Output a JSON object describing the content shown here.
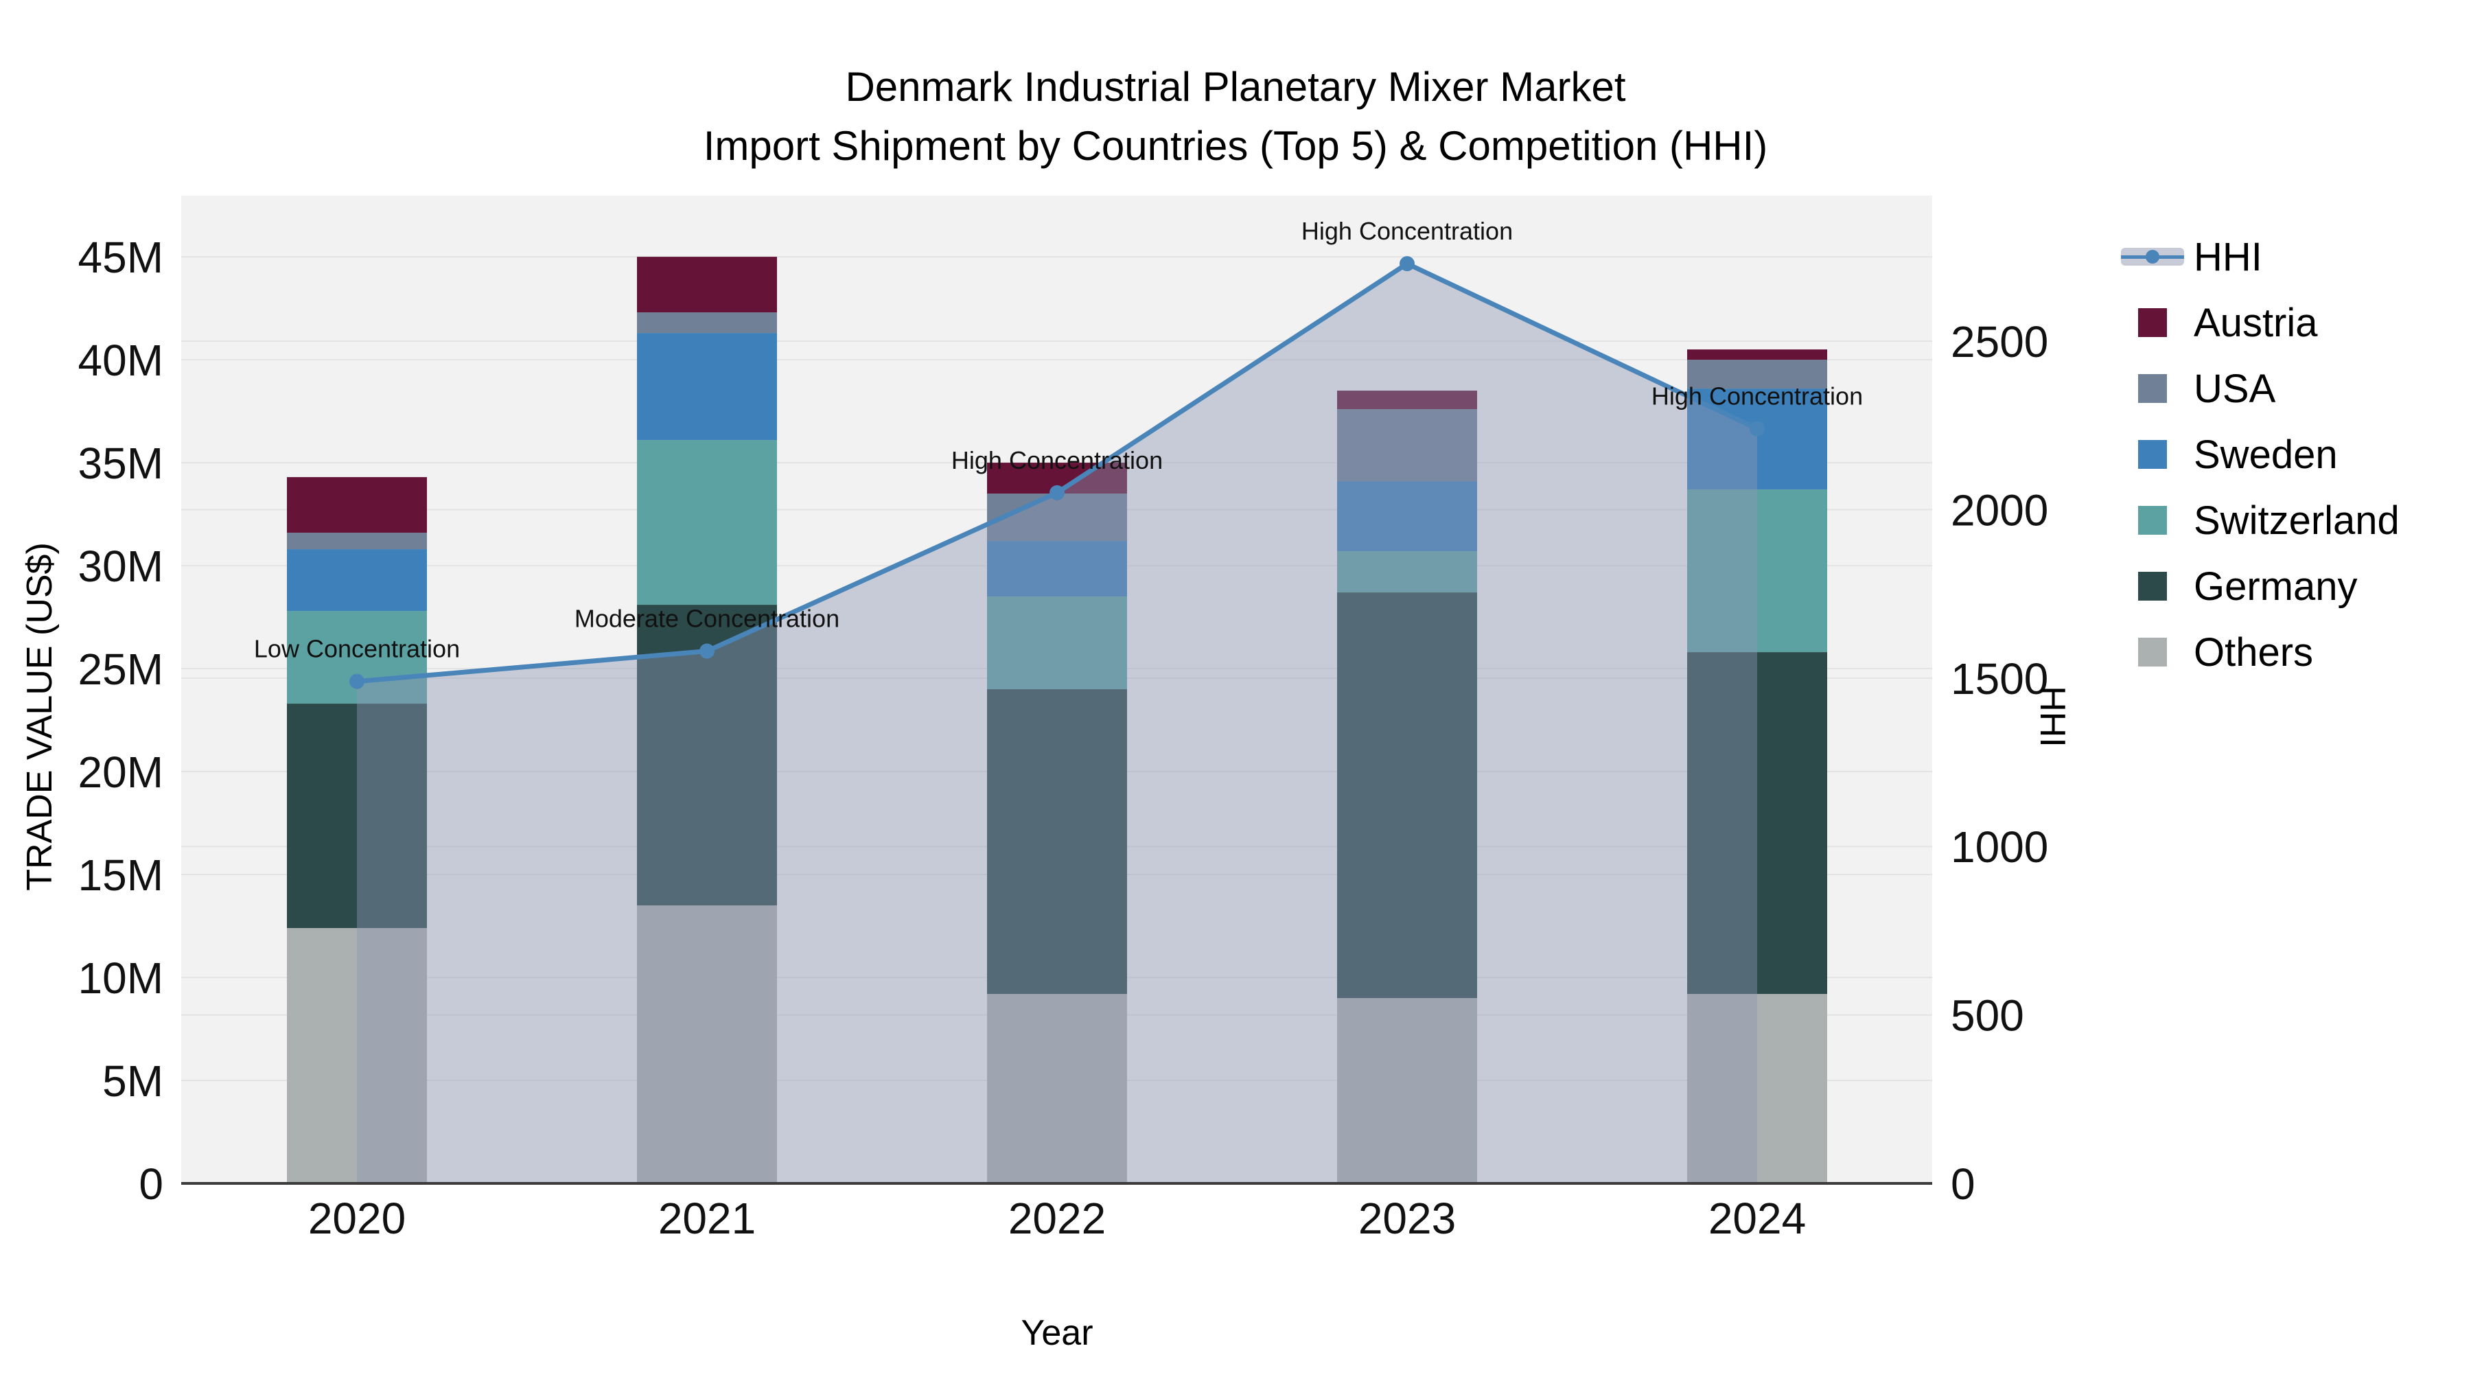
{
  "page": {
    "title_line1": "Denmark Industrial Planetary Mixer Market",
    "title_line2": "Import Shipment by Countries (Top 5) & Competition (HHI)"
  },
  "chart_data": {
    "type": "bar+line",
    "title": "Denmark Industrial Planetary Mixer Market Import Shipment by Countries (Top 5) & Competition (HHI)",
    "xlabel": "Year",
    "ylabel_left": "TRADE VALUE (US$)",
    "ylabel_right": "HHI",
    "categories": [
      "2020",
      "2021",
      "2022",
      "2023",
      "2024"
    ],
    "value_unit": "million US$",
    "series": [
      {
        "name": "Others",
        "color": "#ABB0B0",
        "values": [
          12.4,
          13.5,
          9.2,
          9.0,
          9.2
        ]
      },
      {
        "name": "Germany",
        "color": "#2C4A4A",
        "values": [
          10.9,
          14.6,
          14.8,
          19.7,
          16.6
        ]
      },
      {
        "name": "Switzerland",
        "color": "#5CA2A2",
        "values": [
          4.5,
          8.0,
          4.5,
          2.0,
          7.9
        ]
      },
      {
        "name": "Sweden",
        "color": "#3E80BA",
        "values": [
          3.0,
          5.2,
          2.7,
          3.4,
          4.9
        ]
      },
      {
        "name": "USA",
        "color": "#6F8097",
        "values": [
          0.8,
          1.0,
          2.3,
          3.5,
          1.4
        ]
      },
      {
        "name": "Austria",
        "color": "#651438",
        "values": [
          2.7,
          2.7,
          1.5,
          0.9,
          0.5
        ]
      }
    ],
    "stack_totals": [
      34.3,
      45.0,
      35.0,
      38.5,
      40.5
    ],
    "hhi": {
      "name": "HHI",
      "color": "#4A85BA",
      "area_fill": "rgba(140,151,178,0.42)",
      "values": [
        1490,
        1580,
        2050,
        2730,
        2240
      ],
      "annotations": [
        "Low Concentration",
        "Moderate Concentration",
        "High Concentration",
        "High Concentration",
        "High Concentration"
      ]
    },
    "y_left": {
      "ticks": [
        0,
        5,
        10,
        15,
        20,
        25,
        30,
        35,
        40,
        45
      ],
      "tick_labels": [
        "0",
        "5M",
        "10M",
        "15M",
        "20M",
        "25M",
        "30M",
        "35M",
        "40M",
        "45M"
      ],
      "range": [
        0,
        47.97
      ]
    },
    "y_right": {
      "ticks": [
        0,
        500,
        1000,
        1500,
        2000,
        2500
      ],
      "tick_labels": [
        "0",
        "500",
        "1000",
        "1500",
        "2000",
        "2500"
      ],
      "range": [
        0,
        2932
      ]
    },
    "legend": [
      "HHI",
      "Austria",
      "USA",
      "Sweden",
      "Switzerland",
      "Germany",
      "Others"
    ],
    "legend_position": "right",
    "grid": true
  },
  "colors": {
    "plot_bg": "#F2F2F2",
    "grid": "#E3E3E3",
    "axis_line": "#3B3B3B",
    "text": "#111111"
  }
}
